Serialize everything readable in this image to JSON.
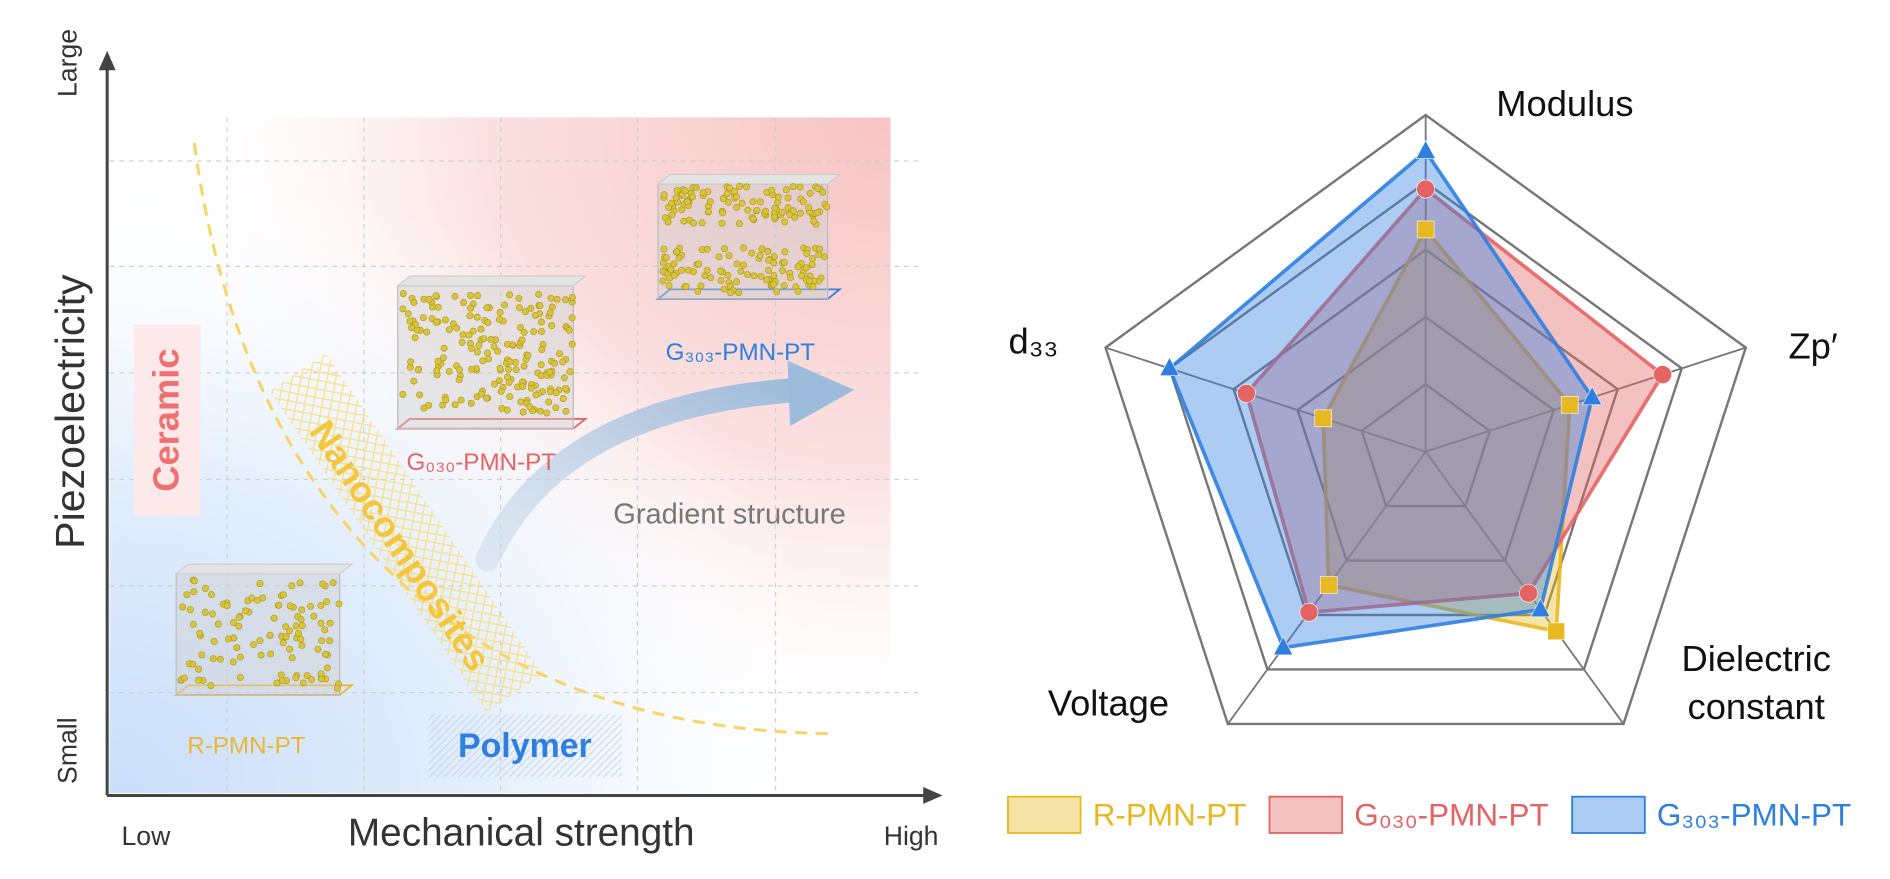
{
  "diagram": {
    "y_axis_label": "Piezoelectricity",
    "y_high": "Large",
    "y_low": "Small",
    "x_axis_label": "Mechanical strength",
    "x_low": "Low",
    "x_high": "High",
    "regions": {
      "ceramic": "Ceramic",
      "nanocomposites": "Nanocomposites",
      "polymer": "Polymer"
    },
    "samples": [
      "R-PMN-PT",
      "G₀₃₀-PMN-PT",
      "G₃₀₃-PMN-PT"
    ],
    "arrow_label": "Gradient structure"
  },
  "chart_data": {
    "type": "radar",
    "categories": [
      "Modulus",
      "Zp′",
      "Dielectric constant",
      "Voltage",
      "d₃₃"
    ],
    "series": [
      {
        "name": "R-PMN-PT",
        "color": "#e8b820",
        "marker": "square",
        "values": [
          3.3,
          2.25,
          3.3,
          2.45,
          1.6
        ]
      },
      {
        "name": "G₀₃₀-PMN-PT",
        "color": "#e46464",
        "marker": "circle",
        "values": [
          3.9,
          3.7,
          2.6,
          2.95,
          2.8
        ]
      },
      {
        "name": "G₃₀₃-PMN-PT",
        "color": "#2f7fe0",
        "marker": "triangle",
        "values": [
          4.46,
          2.6,
          2.9,
          3.6,
          4.0
        ]
      }
    ],
    "rlim": [
      0,
      5
    ],
    "rticks": [
      1,
      2,
      3,
      4,
      5
    ],
    "legend": "bottom"
  }
}
